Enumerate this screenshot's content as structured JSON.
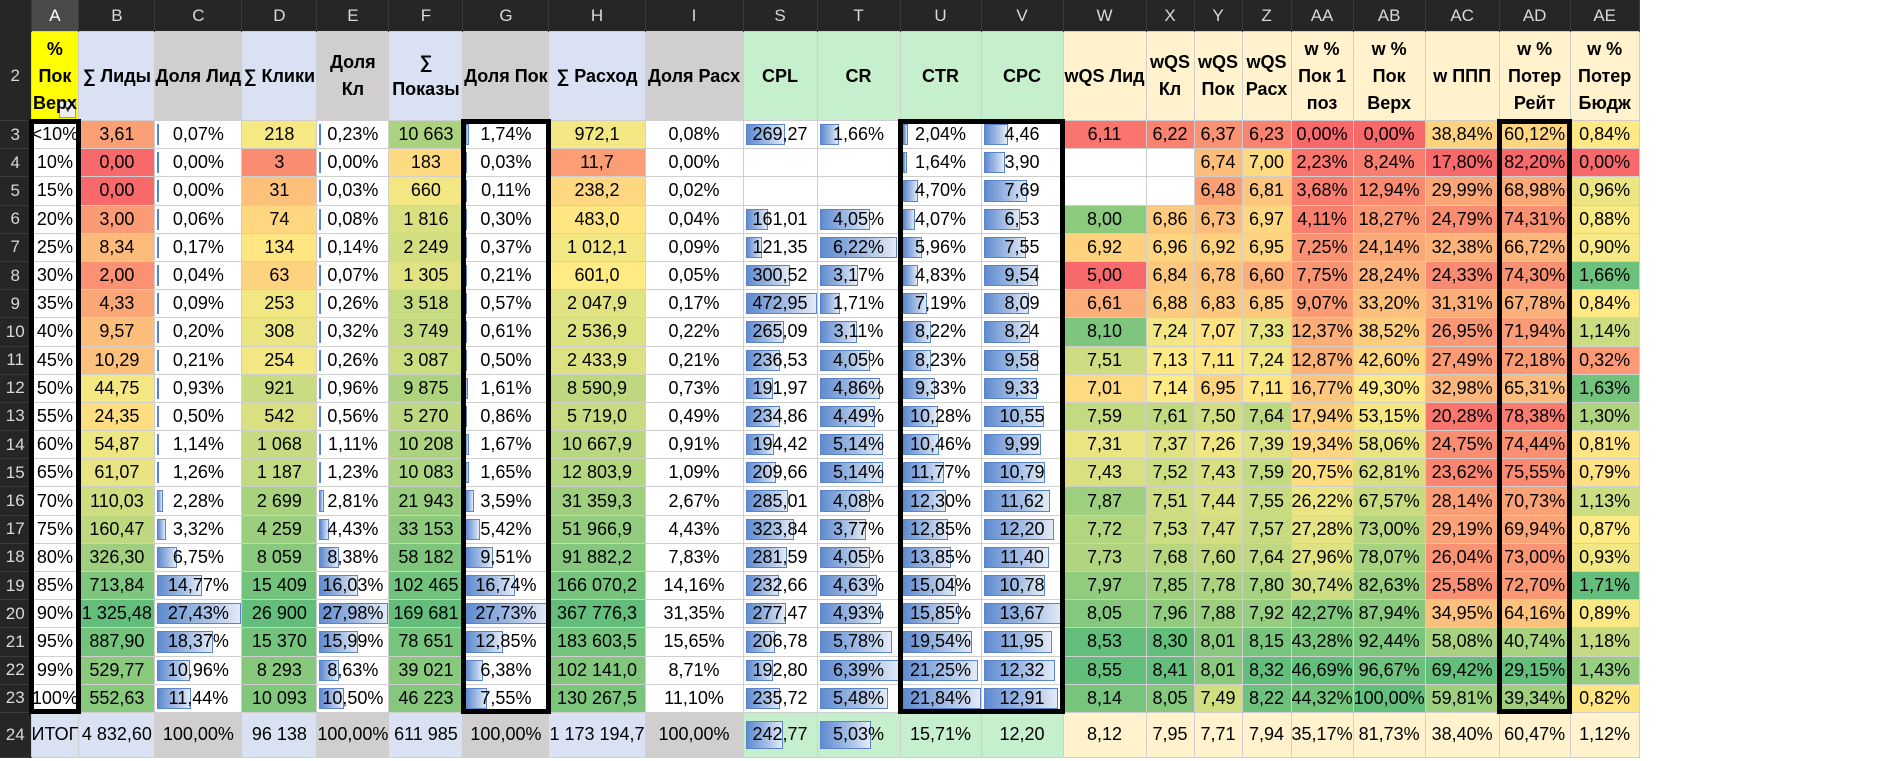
{
  "column_letters": [
    "A",
    "B",
    "C",
    "D",
    "E",
    "F",
    "G",
    "H",
    "I",
    "S",
    "T",
    "U",
    "V",
    "W",
    "X",
    "Y",
    "Z",
    "AA",
    "AB",
    "AC",
    "AD",
    "AE"
  ],
  "header_row_number": "2",
  "headers": [
    {
      "label": "% Пок Верх",
      "bg": "#ffff00"
    },
    {
      "label": "∑ Лиды",
      "bg": "#d9e1f2"
    },
    {
      "label": "Доля Лид",
      "bg": "#d0cece"
    },
    {
      "label": "∑ Клики",
      "bg": "#d9e1f2"
    },
    {
      "label": "Доля Кл",
      "bg": "#d0cece"
    },
    {
      "label": "∑ Показы",
      "bg": "#d9e1f2"
    },
    {
      "label": "Доля Пок",
      "bg": "#d0cece"
    },
    {
      "label": "∑ Расход",
      "bg": "#d9e1f2"
    },
    {
      "label": "Доля Расх",
      "bg": "#d0cece"
    },
    {
      "label": "CPL",
      "bg": "#c6efce"
    },
    {
      "label": "CR",
      "bg": "#c6efce"
    },
    {
      "label": "CTR",
      "bg": "#c6efce"
    },
    {
      "label": "CPC",
      "bg": "#c6efce"
    },
    {
      "label": "wQS Лид",
      "bg": "#fff2cc"
    },
    {
      "label": "wQS Кл",
      "bg": "#fff2cc"
    },
    {
      "label": "wQS Пок",
      "bg": "#fff2cc"
    },
    {
      "label": "wQS Расх",
      "bg": "#fff2cc"
    },
    {
      "label": "w % Пок 1 поз",
      "bg": "#fff2cc"
    },
    {
      "label": "w % Пок Верх",
      "bg": "#fff2cc"
    },
    {
      "label": "w ППП",
      "bg": "#fff2cc"
    },
    {
      "label": "w % Потер Рейт",
      "bg": "#fff2cc"
    },
    {
      "label": "w % Потер Бюдж",
      "bg": "#fff2cc"
    }
  ],
  "rows": [
    {
      "rownum": "3",
      "cells": [
        "<10%",
        "3,61",
        "0,07%",
        "218",
        "0,23%",
        "10 663",
        "1,74%",
        "972,1",
        "0,08%",
        "269,27",
        "1,66%",
        "2,04%",
        "4,46",
        "6,11",
        "6,22",
        "6,37",
        "6,23",
        "0,00%",
        "0,00%",
        "38,84%",
        "60,12%",
        "0,84%"
      ]
    },
    {
      "rownum": "4",
      "cells": [
        "10%",
        "0,00",
        "0,00%",
        "3",
        "0,00%",
        "183",
        "0,03%",
        "11,7",
        "0,00%",
        "",
        "",
        "1,64%",
        "3,90",
        "",
        "",
        "6,74",
        "7,00",
        "2,23%",
        "8,24%",
        "17,80%",
        "82,20%",
        "0,00%"
      ]
    },
    {
      "rownum": "5",
      "cells": [
        "15%",
        "0,00",
        "0,00%",
        "31",
        "0,03%",
        "660",
        "0,11%",
        "238,2",
        "0,02%",
        "",
        "",
        "4,70%",
        "7,69",
        "",
        "",
        "6,48",
        "6,81",
        "3,68%",
        "12,94%",
        "29,99%",
        "68,98%",
        "0,96%"
      ]
    },
    {
      "rownum": "6",
      "cells": [
        "20%",
        "3,00",
        "0,06%",
        "74",
        "0,08%",
        "1 816",
        "0,30%",
        "483,0",
        "0,04%",
        "161,01",
        "4,05%",
        "4,07%",
        "6,53",
        "8,00",
        "6,86",
        "6,73",
        "6,97",
        "4,11%",
        "18,27%",
        "24,79%",
        "74,31%",
        "0,88%"
      ]
    },
    {
      "rownum": "7",
      "cells": [
        "25%",
        "8,34",
        "0,17%",
        "134",
        "0,14%",
        "2 249",
        "0,37%",
        "1 012,1",
        "0,09%",
        "121,35",
        "6,22%",
        "5,96%",
        "7,55",
        "6,92",
        "6,96",
        "6,92",
        "6,95",
        "7,25%",
        "24,14%",
        "32,38%",
        "66,72%",
        "0,90%"
      ]
    },
    {
      "rownum": "8",
      "cells": [
        "30%",
        "2,00",
        "0,04%",
        "63",
        "0,07%",
        "1 305",
        "0,21%",
        "601,0",
        "0,05%",
        "300,52",
        "3,17%",
        "4,83%",
        "9,54",
        "5,00",
        "6,84",
        "6,78",
        "6,60",
        "7,75%",
        "28,24%",
        "24,33%",
        "74,30%",
        "1,66%"
      ]
    },
    {
      "rownum": "9",
      "cells": [
        "35%",
        "4,33",
        "0,09%",
        "253",
        "0,26%",
        "3 518",
        "0,57%",
        "2 047,9",
        "0,17%",
        "472,95",
        "1,71%",
        "7,19%",
        "8,09",
        "6,61",
        "6,88",
        "6,83",
        "6,85",
        "9,07%",
        "33,20%",
        "31,31%",
        "67,78%",
        "0,84%"
      ]
    },
    {
      "rownum": "10",
      "cells": [
        "40%",
        "9,57",
        "0,20%",
        "308",
        "0,32%",
        "3 749",
        "0,61%",
        "2 536,9",
        "0,22%",
        "265,09",
        "3,11%",
        "8,22%",
        "8,24",
        "8,10",
        "7,24",
        "7,07",
        "7,33",
        "12,37%",
        "38,52%",
        "26,95%",
        "71,94%",
        "1,14%"
      ]
    },
    {
      "rownum": "11",
      "cells": [
        "45%",
        "10,29",
        "0,21%",
        "254",
        "0,26%",
        "3 087",
        "0,50%",
        "2 433,9",
        "0,21%",
        "236,53",
        "4,05%",
        "8,23%",
        "9,58",
        "7,51",
        "7,13",
        "7,11",
        "7,24",
        "12,87%",
        "42,60%",
        "27,49%",
        "72,18%",
        "0,32%"
      ]
    },
    {
      "rownum": "12",
      "cells": [
        "50%",
        "44,75",
        "0,93%",
        "921",
        "0,96%",
        "9 875",
        "1,61%",
        "8 590,9",
        "0,73%",
        "191,97",
        "4,86%",
        "9,33%",
        "9,33",
        "7,01",
        "7,14",
        "6,95",
        "7,11",
        "16,77%",
        "49,30%",
        "32,98%",
        "65,31%",
        "1,63%"
      ]
    },
    {
      "rownum": "13",
      "cells": [
        "55%",
        "24,35",
        "0,50%",
        "542",
        "0,56%",
        "5 270",
        "0,86%",
        "5 719,0",
        "0,49%",
        "234,86",
        "4,49%",
        "10,28%",
        "10,55",
        "7,59",
        "7,61",
        "7,50",
        "7,64",
        "17,94%",
        "53,15%",
        "20,28%",
        "78,38%",
        "1,30%"
      ]
    },
    {
      "rownum": "14",
      "cells": [
        "60%",
        "54,87",
        "1,14%",
        "1 068",
        "1,11%",
        "10 208",
        "1,67%",
        "10 667,9",
        "0,91%",
        "194,42",
        "5,14%",
        "10,46%",
        "9,99",
        "7,31",
        "7,37",
        "7,26",
        "7,39",
        "19,34%",
        "58,06%",
        "24,75%",
        "74,44%",
        "0,81%"
      ]
    },
    {
      "rownum": "15",
      "cells": [
        "65%",
        "61,07",
        "1,26%",
        "1 187",
        "1,23%",
        "10 083",
        "1,65%",
        "12 803,9",
        "1,09%",
        "209,66",
        "5,14%",
        "11,77%",
        "10,79",
        "7,43",
        "7,52",
        "7,43",
        "7,59",
        "20,75%",
        "62,81%",
        "23,62%",
        "75,55%",
        "0,79%"
      ]
    },
    {
      "rownum": "16",
      "cells": [
        "70%",
        "110,03",
        "2,28%",
        "2 699",
        "2,81%",
        "21 943",
        "3,59%",
        "31 359,3",
        "2,67%",
        "285,01",
        "4,08%",
        "12,30%",
        "11,62",
        "7,87",
        "7,51",
        "7,44",
        "7,55",
        "26,22%",
        "67,57%",
        "28,14%",
        "70,73%",
        "1,13%"
      ]
    },
    {
      "rownum": "17",
      "cells": [
        "75%",
        "160,47",
        "3,32%",
        "4 259",
        "4,43%",
        "33 153",
        "5,42%",
        "51 966,9",
        "4,43%",
        "323,84",
        "3,77%",
        "12,85%",
        "12,20",
        "7,72",
        "7,53",
        "7,47",
        "7,57",
        "27,28%",
        "73,00%",
        "29,19%",
        "69,94%",
        "0,87%"
      ]
    },
    {
      "rownum": "18",
      "cells": [
        "80%",
        "326,30",
        "6,75%",
        "8 059",
        "8,38%",
        "58 182",
        "9,51%",
        "91 882,2",
        "7,83%",
        "281,59",
        "4,05%",
        "13,85%",
        "11,40",
        "7,73",
        "7,68",
        "7,60",
        "7,64",
        "27,96%",
        "78,07%",
        "26,04%",
        "73,00%",
        "0,93%"
      ]
    },
    {
      "rownum": "19",
      "cells": [
        "85%",
        "713,84",
        "14,77%",
        "15 409",
        "16,03%",
        "102 465",
        "16,74%",
        "166 070,2",
        "14,16%",
        "232,66",
        "4,63%",
        "15,04%",
        "10,78",
        "7,97",
        "7,85",
        "7,78",
        "7,80",
        "30,74%",
        "82,63%",
        "25,58%",
        "72,70%",
        "1,71%"
      ]
    },
    {
      "rownum": "20",
      "cells": [
        "90%",
        "1 325,48",
        "27,43%",
        "26 900",
        "27,98%",
        "169 681",
        "27,73%",
        "367 776,3",
        "31,35%",
        "277,47",
        "4,93%",
        "15,85%",
        "13,67",
        "8,05",
        "7,96",
        "7,88",
        "7,92",
        "42,27%",
        "87,94%",
        "34,95%",
        "64,16%",
        "0,89%"
      ]
    },
    {
      "rownum": "21",
      "cells": [
        "95%",
        "887,90",
        "18,37%",
        "15 370",
        "15,99%",
        "78 651",
        "12,85%",
        "183 603,5",
        "15,65%",
        "206,78",
        "5,78%",
        "19,54%",
        "11,95",
        "8,53",
        "8,30",
        "8,01",
        "8,15",
        "43,28%",
        "92,44%",
        "58,08%",
        "40,74%",
        "1,18%"
      ]
    },
    {
      "rownum": "22",
      "cells": [
        "99%",
        "529,77",
        "10,96%",
        "8 293",
        "8,63%",
        "39 021",
        "6,38%",
        "102 141,0",
        "8,71%",
        "192,80",
        "6,39%",
        "21,25%",
        "12,32",
        "8,55",
        "8,41",
        "8,01",
        "8,32",
        "46,69%",
        "96,67%",
        "69,42%",
        "29,15%",
        "1,43%"
      ]
    },
    {
      "rownum": "23",
      "cells": [
        "100%",
        "552,63",
        "11,44%",
        "10 093",
        "10,50%",
        "46 223",
        "7,55%",
        "130 267,5",
        "11,10%",
        "235,72",
        "5,48%",
        "21,84%",
        "12,91",
        "8,14",
        "8,05",
        "7,49",
        "8,22",
        "44,32%",
        "100,00%",
        "59,81%",
        "39,34%",
        "0,82%"
      ]
    }
  ],
  "total_row": {
    "rownum": "24",
    "cells": [
      "ИТОГ",
      "4 832,60",
      "100,00%",
      "96 138",
      "100,00%",
      "611 985",
      "100,00%",
      "1 173 194,7",
      "100,00%",
      "242,77",
      "5,03%",
      "15,71%",
      "12,20",
      "8,12",
      "7,95",
      "7,71",
      "7,94",
      "35,17%",
      "81,73%",
      "38,40%",
      "60,47%",
      "1,12%"
    ]
  },
  "total_bgs": [
    "#d9e1f2",
    "#d9e1f2",
    "#d0cece",
    "#d9e1f2",
    "#d0cece",
    "#d9e1f2",
    "#d0cece",
    "#d9e1f2",
    "#d0cece",
    "#c6efce",
    "#c6efce",
    "#c6efce",
    "#c6efce",
    "#fff2cc",
    "#fff2cc",
    "#fff2cc",
    "#fff2cc",
    "#fff2cc",
    "#fff2cc",
    "#fff2cc",
    "#fff2cc",
    "#fff2cc"
  ],
  "colors": {
    "red": "#f8696b",
    "yellow": "#ffeb84",
    "green": "#63be7b",
    "header_bg": "#262626",
    "selected_col": "A",
    "bar": "#5f8bd0"
  }
}
